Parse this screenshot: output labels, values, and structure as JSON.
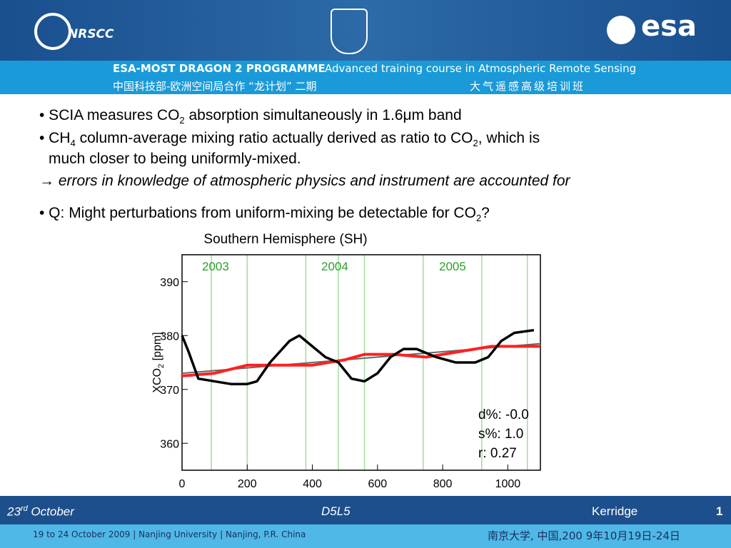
{
  "header": {
    "logo_left": "NRSCC",
    "logo_right": "esa",
    "programme": "ESA-MOST DRAGON 2 PROGRAMME",
    "course": "Advanced training course in Atmospheric Remote Sensing",
    "chinese_left": "中国科技部-欧洲空间局合作 “龙计划” 二期",
    "chinese_right": "大气遥感高级培训班"
  },
  "bullets": [
    [
      "• SCIA measures CO",
      "2",
      " absorption simultaneously in 1.6μm band"
    ],
    [
      "• CH",
      "4",
      " column-average mixing ratio actually derived as ratio to CO",
      "2",
      ", which is"
    ],
    [
      "much closer to being uniformly-mixed."
    ],
    [
      "→ errors in knowledge of atmospheric physics and instrument are accounted for"
    ],
    [
      "• Q: Might perturbations from uniform-mixing be detectable for CO",
      "2",
      "?"
    ]
  ],
  "chart_data": {
    "type": "line",
    "title": "Southern Hemisphere (SH)",
    "y_label": [
      "XCO",
      "2",
      " [ppm]"
    ],
    "year_labels": [
      "2003",
      "2004",
      "2005"
    ],
    "annotations": [
      "d%: -0.0",
      "s%: 1.0",
      "r: 0.27"
    ],
    "xlim": [
      0,
      1100
    ],
    "ylim": [
      355,
      395
    ],
    "xticks": [
      0,
      200,
      400,
      600,
      800,
      1000
    ],
    "yticks": [
      360,
      370,
      380,
      390
    ],
    "series": [
      {
        "color": "#666666",
        "x": [
          0,
          1100
        ],
        "values": [
          373,
          378.5
        ]
      },
      {
        "color": "#ff2020",
        "x": [
          0,
          100,
          200,
          300,
          400,
          500,
          560,
          650,
          750,
          850,
          950,
          1100
        ],
        "values": [
          372.5,
          373,
          374.5,
          374.5,
          374.5,
          375.5,
          376.5,
          376.5,
          376,
          377,
          378,
          378
        ]
      },
      {
        "color": "#000000",
        "x": [
          0,
          20,
          50,
          100,
          150,
          200,
          230,
          270,
          330,
          360,
          400,
          440,
          480,
          520,
          560,
          600,
          640,
          680,
          720,
          780,
          840,
          900,
          940,
          980,
          1020,
          1080
        ],
        "values": [
          380,
          377,
          372,
          371.5,
          371,
          371,
          371.5,
          375,
          379,
          380,
          378,
          376,
          375,
          372,
          371.5,
          373,
          376,
          377.5,
          377.5,
          376,
          375,
          375,
          376,
          379,
          380.5,
          381
        ]
      }
    ]
  },
  "footer": {
    "date": [
      "23",
      "rd",
      " October"
    ],
    "session": "D5L5",
    "speaker": "Kerridge",
    "page": "1",
    "venue": "19 to 24 October 2009 | Nanjing University | Nanjing, P.R. China",
    "chinese": "南京大学, 中国,200 9年10月19日-24日"
  }
}
